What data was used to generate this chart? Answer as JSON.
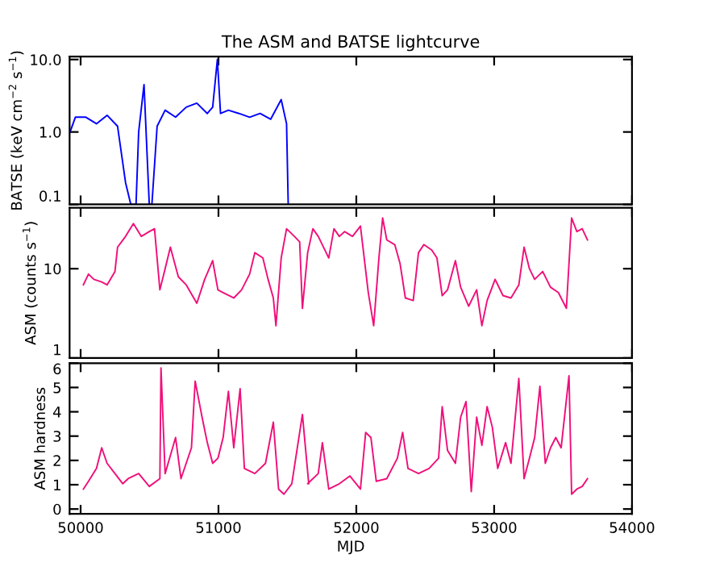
{
  "chart_data": [
    {
      "type": "line",
      "title": "The ASM and BATSE lightcurve",
      "ylabel": "BATSE (keV cm$^{−2}$ s$^{−1}$)",
      "log": "y",
      "xlim": [
        49920,
        54000
      ],
      "xticks": [
        50000,
        51000,
        52000,
        53000,
        54000
      ],
      "ylim": [
        0.1,
        11
      ],
      "yticks": [
        0.1,
        {
          "value": 1,
          "label": "1.0"
        },
        {
          "value": 10,
          "label": "10.0"
        }
      ],
      "tick_labels": "y",
      "grid": false,
      "series": [
        {
          "color": "#0000ff",
          "x": [
            49923,
            49962,
            50038,
            50115,
            50192,
            50268,
            50326,
            50364,
            50402,
            50421,
            50460,
            50498,
            50517,
            50555,
            50613,
            50689,
            50766,
            50843,
            50919,
            50958,
            50992,
            51015,
            51072,
            51149,
            51226,
            51302,
            51379,
            51455,
            51494,
            51506
          ],
          "values": [
            1.0,
            1.6,
            1.6,
            1.3,
            1.7,
            1.2,
            0.2,
            0.1,
            0.1,
            1.0,
            4.5,
            0.1,
            0.1,
            1.2,
            2.0,
            1.6,
            2.2,
            2.5,
            1.8,
            2.2,
            10.0,
            1.8,
            2.0,
            1.8,
            1.6,
            1.8,
            1.5,
            2.8,
            1.3,
            0.1
          ]
        }
      ]
    },
    {
      "type": "line",
      "ylabel": "ASM (counts s$^{−1}$)",
      "log": "y",
      "xlim": [
        49920,
        54000
      ],
      "xticks": [
        50000,
        51000,
        52000,
        53000,
        54000
      ],
      "ylim": [
        1,
        48
      ],
      "yticks": [
        1,
        10
      ],
      "tick_labels": "y",
      "grid": false,
      "series": [
        {
          "color": "#f0107a",
          "x": [
            50020,
            50057,
            50096,
            50153,
            50192,
            50249,
            50268,
            50326,
            50383,
            50440,
            50498,
            50536,
            50575,
            50613,
            50651,
            50709,
            50766,
            50843,
            50900,
            50958,
            50996,
            51034,
            51111,
            51168,
            51226,
            51264,
            51322,
            51360,
            51398,
            51417,
            51455,
            51494,
            51551,
            51589,
            51609,
            51647,
            51685,
            51724,
            51800,
            51838,
            51877,
            51915,
            51972,
            52030,
            52087,
            52126,
            52164,
            52191,
            52221,
            52279,
            52317,
            52356,
            52413,
            52451,
            52490,
            52547,
            52585,
            52623,
            52662,
            52719,
            52757,
            52815,
            52873,
            52911,
            52949,
            53007,
            53064,
            53122,
            53179,
            53217,
            53256,
            53294,
            53352,
            53409,
            53466,
            53524,
            53562,
            53600,
            53639,
            53677
          ],
          "values": [
            6.6,
            8.7,
            7.6,
            7.1,
            6.6,
            9.3,
            17.4,
            23,
            32,
            23,
            26,
            28,
            5.8,
            10,
            17.4,
            8.1,
            6.6,
            4.1,
            7.6,
            12.3,
            5.8,
            5.4,
            4.7,
            5.8,
            8.7,
            15.1,
            13.2,
            7.6,
            4.7,
            2.3,
            13.2,
            28,
            23,
            20,
            3.6,
            15.1,
            28,
            23,
            13.2,
            28,
            23,
            26,
            23,
            30,
            5.4,
            2.3,
            13.2,
            37,
            21,
            18.6,
            11.5,
            4.7,
            4.4,
            15.1,
            18.6,
            16.2,
            13.2,
            5.0,
            5.8,
            12.3,
            6.2,
            3.8,
            5.8,
            2.3,
            4.4,
            7.6,
            5.0,
            4.7,
            6.6,
            17.4,
            10,
            7.6,
            9.3,
            6.2,
            5.4,
            3.6,
            37,
            26,
            28,
            21
          ]
        }
      ]
    },
    {
      "type": "line",
      "xlabel": "MJD",
      "ylabel": "ASM hardness",
      "xlim": [
        49920,
        54000
      ],
      "xticks": [
        50000,
        51000,
        52000,
        53000,
        54000
      ],
      "ylim": [
        -0.2,
        6
      ],
      "yticks": [
        0,
        1,
        2,
        3,
        4,
        5,
        6
      ],
      "grid": false,
      "series": [
        {
          "color": "#f0107a",
          "x": [
            50020,
            50057,
            50115,
            50153,
            50192,
            50249,
            50306,
            50345,
            50421,
            50498,
            50575,
            50583,
            50613,
            50689,
            50728,
            50804,
            50831,
            50881,
            50919,
            50958,
            50996,
            51034,
            51072,
            51111,
            51157,
            51188,
            51264,
            51341,
            51398,
            51436,
            51475,
            51532,
            51609,
            51655,
            51647,
            51724,
            51754,
            51800,
            51877,
            51953,
            52030,
            52068,
            52106,
            52145,
            52221,
            52298,
            52336,
            52375,
            52451,
            52528,
            52597,
            52623,
            52662,
            52719,
            52757,
            52796,
            52834,
            52873,
            52911,
            52949,
            52987,
            53026,
            53083,
            53122,
            53179,
            53217,
            53256,
            53294,
            53332,
            53371,
            53409,
            53447,
            53486,
            53543,
            53562,
            53600,
            53639,
            53677
          ],
          "values": [
            0.82,
            1.14,
            1.67,
            2.52,
            1.88,
            1.46,
            1.04,
            1.25,
            1.46,
            0.93,
            1.25,
            5.8,
            1.46,
            2.94,
            1.25,
            2.52,
            5.26,
            3.78,
            2.73,
            1.88,
            2.09,
            2.94,
            4.84,
            2.52,
            4.95,
            1.67,
            1.46,
            1.88,
            3.57,
            0.82,
            0.61,
            1.04,
            3.89,
            1.04,
            1.04,
            1.46,
            2.73,
            0.82,
            1.04,
            1.36,
            0.82,
            3.15,
            2.94,
            1.14,
            1.25,
            2.09,
            3.15,
            1.67,
            1.46,
            1.67,
            2.09,
            4.21,
            2.41,
            1.88,
            3.78,
            4.42,
            0.72,
            3.78,
            2.62,
            4.21,
            3.36,
            1.67,
            2.73,
            1.88,
            5.37,
            1.25,
            2.09,
            2.94,
            5.05,
            1.88,
            2.52,
            2.94,
            2.52,
            5.48,
            0.61,
            0.82,
            0.93,
            1.25
          ]
        }
      ]
    }
  ]
}
